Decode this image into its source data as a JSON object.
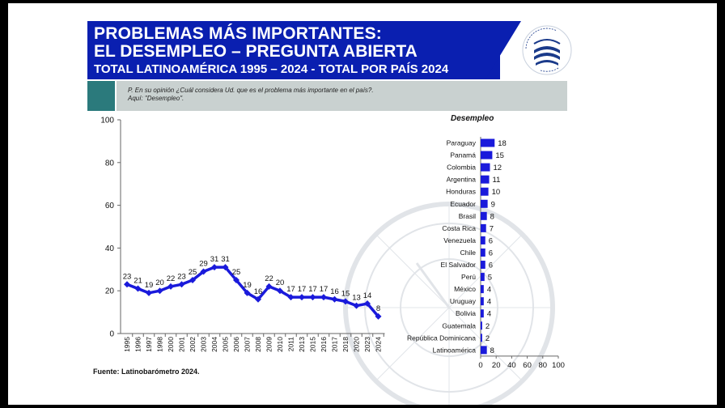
{
  "header": {
    "line1": "PROBLEMAS MÁS IMPORTANTES:",
    "line2": "EL DESEMPLEO – PREGUNTA ABIERTA",
    "line3": "TOTAL LATINOAMÉRICA 1995 – 2024 - TOTAL POR PAÍS 2024"
  },
  "question": {
    "line1": "P. En su opinión  ¿Cuál considera Ud. que es el problema más importante en el país?.",
    "line2": "Aquí: \"Desempleo\"."
  },
  "source": "Fuente: Latinobarómetro 2024.",
  "colors": {
    "header_bg": "#0a1fb0",
    "series": "#1a1adb",
    "teal": "#2b7a7c",
    "question_bg": "#c9d1d0"
  },
  "chart_data": [
    {
      "type": "line",
      "x": [
        "1995",
        "1996",
        "1997",
        "1998",
        "2000",
        "2001",
        "2002",
        "2003",
        "2004",
        "2005",
        "2006",
        "2007",
        "2008",
        "2009",
        "2010",
        "2011",
        "2013",
        "2015",
        "2016",
        "2017",
        "2018",
        "2020",
        "2023",
        "2024"
      ],
      "values": [
        23,
        21,
        19,
        20,
        22,
        23,
        25,
        29,
        31,
        31,
        25,
        19,
        16,
        22,
        20,
        17,
        17,
        17,
        17,
        16,
        15,
        13,
        14,
        8
      ],
      "ylim": [
        0,
        100
      ],
      "yticks": [
        0,
        20,
        40,
        60,
        80,
        100
      ],
      "grid": false,
      "data_labels": true
    },
    {
      "type": "bar",
      "orientation": "horizontal",
      "title": "Desempleo",
      "categories": [
        "Paraguay",
        "Panamá",
        "Colombia",
        "Argentina",
        "Honduras",
        "Ecuador",
        "Brasil",
        "Costa Rica",
        "Venezuela",
        "Chile",
        "El Salvador",
        "Perú",
        "México",
        "Uruguay",
        "Bolivia",
        "Guatemala",
        "República Dominicana",
        "Latinoamérica"
      ],
      "values": [
        18,
        15,
        12,
        11,
        10,
        9,
        8,
        7,
        6,
        6,
        6,
        5,
        4,
        4,
        4,
        2,
        2,
        8
      ],
      "xlim": [
        0,
        100
      ],
      "xticks": [
        0,
        20,
        40,
        60,
        80,
        100
      ],
      "data_labels": true
    }
  ]
}
